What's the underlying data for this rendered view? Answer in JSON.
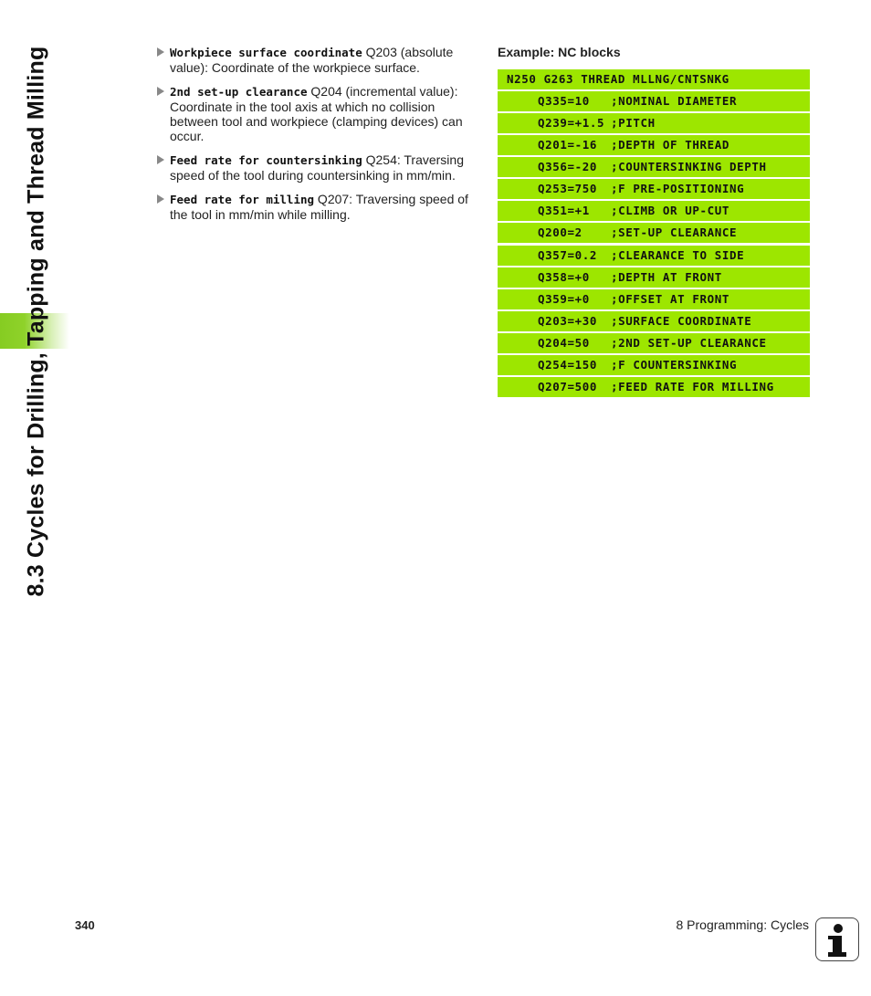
{
  "sidebar": {
    "title": "8.3 Cycles for Drilling, Tapping and Thread Milling",
    "accent": "#8fd22a"
  },
  "parameters": [
    {
      "keyword": "Workpiece surface coordinate",
      "text": " Q203 (absolute value): Coordinate of the workpiece surface."
    },
    {
      "keyword": "2nd set-up clearance",
      "text": " Q204 (incremental value): Coordinate in the tool axis at which no collision between tool and workpiece (clamping devices) can occur."
    },
    {
      "keyword": "Feed rate for countersinking",
      "text": " Q254: Traversing speed of the tool during countersinking in mm/min."
    },
    {
      "keyword": "Feed rate for milling",
      "text": " Q207: Traversing speed of the tool in mm/min while milling."
    }
  ],
  "example": {
    "title": "Example: NC blocks",
    "highlight_color": "#9de600",
    "header": "N250 G263 THREAD MLLNG/CNTSNKG",
    "rows": [
      {
        "q": "Q335=10",
        "comment": ";NOMINAL DIAMETER"
      },
      {
        "q": "Q239=+1.5",
        "comment": ";PITCH"
      },
      {
        "q": "Q201=-16",
        "comment": ";DEPTH OF THREAD"
      },
      {
        "q": "Q356=-20",
        "comment": ";COUNTERSINKING DEPTH"
      },
      {
        "q": "Q253=750",
        "comment": ";F PRE-POSITIONING"
      },
      {
        "q": "Q351=+1",
        "comment": ";CLIMB OR UP-CUT"
      },
      {
        "q": "Q200=2",
        "comment": ";SET-UP CLEARANCE"
      },
      {
        "q": "Q357=0.2",
        "comment": ";CLEARANCE TO SIDE"
      },
      {
        "q": "Q358=+0",
        "comment": ";DEPTH AT FRONT"
      },
      {
        "q": "Q359=+0",
        "comment": ";OFFSET AT FRONT"
      },
      {
        "q": "Q203=+30",
        "comment": ";SURFACE COORDINATE"
      },
      {
        "q": "Q204=50",
        "comment": ";2ND SET-UP CLEARANCE"
      },
      {
        "q": "Q254=150",
        "comment": ";F COUNTERSINKING"
      },
      {
        "q": "Q207=500",
        "comment": ";FEED RATE FOR MILLING"
      }
    ]
  },
  "footer": {
    "page_number": "340",
    "chapter": "8 Programming: Cycles",
    "icon": "info-icon"
  }
}
